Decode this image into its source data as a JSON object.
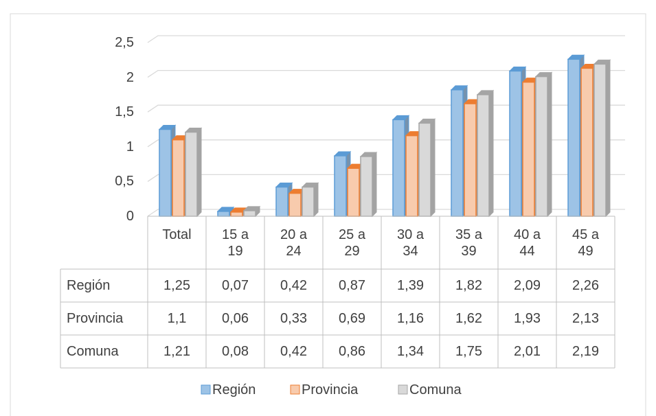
{
  "chart_data": {
    "type": "bar3d",
    "categories": [
      "Total",
      "15 a 19",
      "20 a 24",
      "25 a 29",
      "30 a 34",
      "35 a 39",
      "40 a 44",
      "45 a 49"
    ],
    "series": [
      {
        "name": "Región",
        "color": "#9dc3e6",
        "edge": "#5b9bd5",
        "values": [
          1.25,
          0.07,
          0.42,
          0.87,
          1.39,
          1.82,
          2.09,
          2.26
        ],
        "value_labels": [
          "1,25",
          "0,07",
          "0,42",
          "0,87",
          "1,39",
          "1,82",
          "2,09",
          "2,26"
        ]
      },
      {
        "name": "Provincia",
        "color": "#f8cbad",
        "edge": "#ed7d31",
        "values": [
          1.1,
          0.06,
          0.33,
          0.69,
          1.16,
          1.62,
          1.93,
          2.13
        ],
        "value_labels": [
          "1,1",
          "0,06",
          "0,33",
          "0,69",
          "1,16",
          "1,62",
          "1,93",
          "2,13"
        ]
      },
      {
        "name": "Comuna",
        "color": "#d9d9d9",
        "edge": "#a5a5a5",
        "values": [
          1.21,
          0.08,
          0.42,
          0.86,
          1.34,
          1.75,
          2.01,
          2.19
        ],
        "value_labels": [
          "1,21",
          "0,08",
          "0,42",
          "0,86",
          "1,34",
          "1,75",
          "2,01",
          "2,19"
        ]
      }
    ],
    "ylim": [
      0,
      2.5
    ],
    "yticks": [
      0,
      {
        "value": 0.5,
        "label": "0,5"
      },
      1,
      {
        "value": 1.5,
        "label": "1,5"
      },
      2,
      {
        "value": 2.5,
        "label": "2,5"
      }
    ],
    "grid": true,
    "legend": "bottom",
    "data_table": true
  }
}
